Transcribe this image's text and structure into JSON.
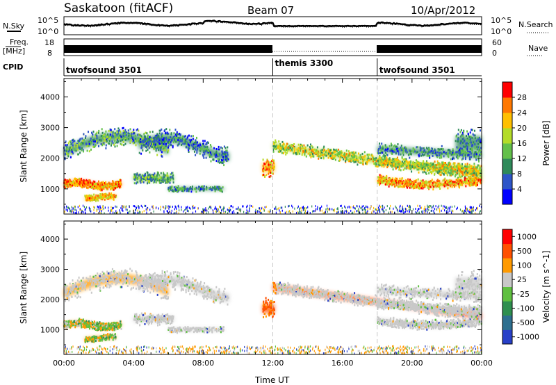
{
  "header": {
    "station": "Saskatoon (fitACF)",
    "beam": "Beam 07",
    "date": "10/Apr/2012"
  },
  "strip_labels": {
    "nsky": "N.Sky",
    "nsky_ticks": [
      "10^5",
      "10^0"
    ],
    "freq": "Freq.",
    "freq_unit": "[MHz]",
    "freq_ticks": [
      "18",
      "8"
    ],
    "cpid": "CPID",
    "nsearch": "N.Search",
    "nsearch_ticks": [
      "10^5",
      "10^0"
    ],
    "nave": "Nave",
    "nave_ticks": [
      "60",
      "0"
    ]
  },
  "cpid_segments": [
    {
      "label": "twofsound 3501",
      "start_hour": 0
    },
    {
      "label": "themis 3300",
      "start_hour": 12
    },
    {
      "label": "twofsound 3501",
      "start_hour": 18
    }
  ],
  "x_axis": {
    "label": "Time UT",
    "ticks": [
      "00:00",
      "04:00",
      "08:00",
      "12:00",
      "16:00",
      "20:00",
      "00:00"
    ],
    "range_hours": [
      0,
      24
    ]
  },
  "chart_data": [
    {
      "type": "heatmap",
      "name": "power",
      "ylabel": "Slant Range [km]",
      "yticks": [
        1000,
        2000,
        3000,
        4000
      ],
      "ylim": [
        180,
        4600
      ],
      "colorbar_label": "Power [dB]",
      "colorbar_ticks": [
        4,
        8,
        12,
        16,
        20,
        24,
        28
      ],
      "colorbar_colors": [
        "#0000ff",
        "#2e55c8",
        "#2f8a5a",
        "#63c04a",
        "#b4dc28",
        "#ffc000",
        "#ff7800",
        "#ff0000"
      ],
      "value_range": [
        0,
        30
      ]
    },
    {
      "type": "heatmap",
      "name": "velocity",
      "ylabel": "Slant Range [km]",
      "yticks": [
        1000,
        2000,
        3000,
        4000
      ],
      "ylim": [
        180,
        4600
      ],
      "colorbar_label": "Velocity [m s^-1]",
      "colorbar_ticks": [
        1000,
        500,
        100,
        25,
        -25,
        -100,
        -500,
        -1000
      ],
      "colorbar_colors": [
        "#2840c8",
        "#2e6f8f",
        "#2f8f4f",
        "#5fc040",
        "#c8c8c8",
        "#ff9a00",
        "#ff5000",
        "#ff0000"
      ]
    }
  ]
}
